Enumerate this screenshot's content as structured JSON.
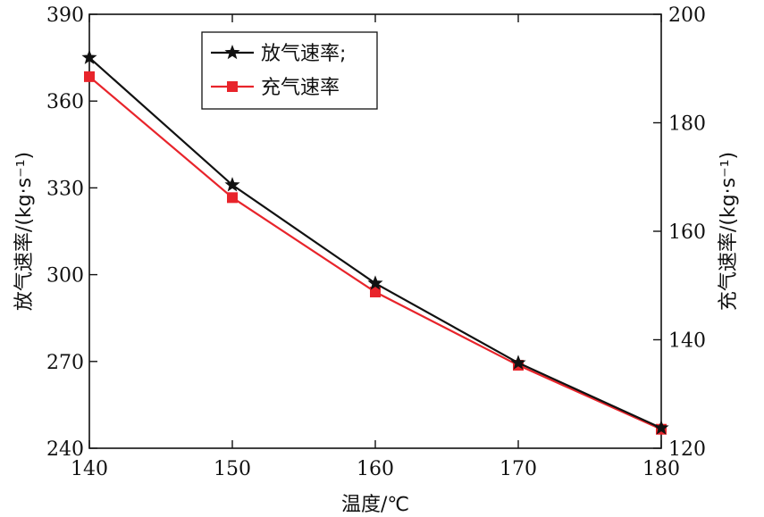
{
  "chart_data": {
    "type": "line",
    "x": [
      140,
      150,
      160,
      170,
      180
    ],
    "xlabel": "温度/℃",
    "xlim": [
      140,
      180
    ],
    "x_ticks": [
      "140",
      "150",
      "160",
      "170",
      "180"
    ],
    "left_axis": {
      "label": "放气速率/(kg·s⁻¹)",
      "ylim": [
        240,
        390
      ],
      "ticks": [
        "240",
        "270",
        "300",
        "330",
        "360",
        "390"
      ]
    },
    "right_axis": {
      "label": "充气速率/(kg·s⁻¹)",
      "ylim": [
        120,
        200
      ],
      "ticks": [
        "120",
        "140",
        "160",
        "180",
        "200"
      ]
    },
    "series": [
      {
        "name": "放气速率;",
        "axis": "left",
        "color": "#111111",
        "marker": "star",
        "values": [
          375,
          331,
          297,
          269.5,
          247
        ]
      },
      {
        "name": "充气速率",
        "axis": "right",
        "color": "#e8242b",
        "marker": "square",
        "values": [
          188.5,
          166.2,
          148.8,
          135.3,
          123.5
        ]
      }
    ],
    "legend_position": "top-left",
    "grid": false
  }
}
